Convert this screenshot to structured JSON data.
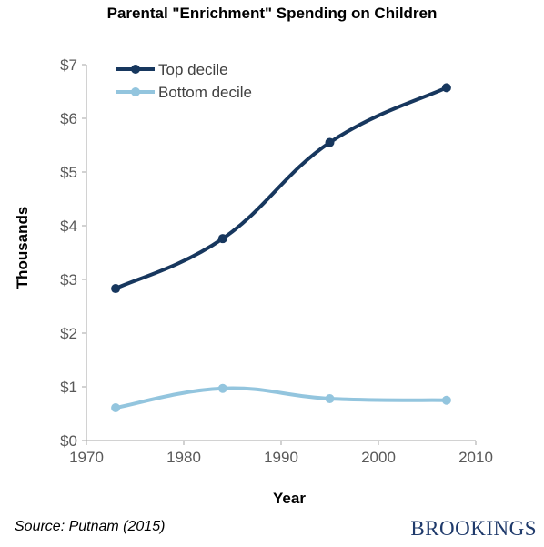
{
  "chart_data": {
    "type": "line",
    "title": "Parental \"Enrichment\" Spending on Children",
    "xlabel": "Year",
    "ylabel": "Thousands",
    "xlim": [
      1970,
      2010
    ],
    "ylim": [
      0,
      7
    ],
    "x_ticks": [
      "1970",
      "1980",
      "1990",
      "2000",
      "2010"
    ],
    "y_ticks": [
      "$0",
      "$1",
      "$2",
      "$3",
      "$4",
      "$5",
      "$6",
      "$7"
    ],
    "grid": false,
    "legend_position": "top-left",
    "series": [
      {
        "name": "Top decile",
        "color": "#17375e",
        "x": [
          1973,
          1984,
          1995,
          2007
        ],
        "values": [
          2.83,
          3.76,
          5.55,
          6.57
        ]
      },
      {
        "name": "Bottom decile",
        "color": "#93c5de",
        "x": [
          1973,
          1984,
          1995,
          2007
        ],
        "values": [
          0.61,
          0.97,
          0.78,
          0.75
        ]
      }
    ]
  },
  "footer": {
    "source": "Source: Putnam (2015)",
    "logo_text": "BROOKINGS"
  }
}
